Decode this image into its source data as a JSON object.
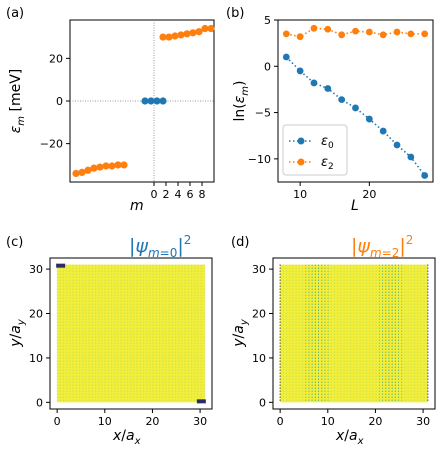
{
  "colors": {
    "blue": "#1f77b4",
    "orange": "#ff7f0e",
    "yellow": "#f2ee3a",
    "lightgreen": "#9fd36a",
    "teal": "#2ca58d",
    "dark": "#2b2b66"
  },
  "chart_data": [
    {
      "type": "scatter",
      "panel_label": "(a)",
      "xlabel": "m",
      "ylabel": "ε_m [meV]",
      "xticks": [
        "0",
        "2",
        "4",
        "6",
        "8"
      ],
      "yticks": [
        "−20",
        "0",
        "20"
      ],
      "xlim": [
        -14,
        10
      ],
      "ylim": [
        -38,
        38
      ],
      "reference_lines": {
        "x": 0,
        "y": 0
      },
      "series": [
        {
          "color": "orange",
          "x": [
            -13,
            -12,
            -11,
            -10,
            -9,
            -8,
            -7,
            -6,
            -5
          ],
          "y": [
            -34,
            -33.5,
            -32.5,
            -31.5,
            -31,
            -30.5,
            -30.5,
            -30,
            -30
          ]
        },
        {
          "color": "blue",
          "x": [
            -1.5,
            -0.5,
            0.5,
            1.5
          ],
          "y": [
            0,
            0,
            0,
            0
          ]
        },
        {
          "color": "orange",
          "x": [
            1.5,
            2.5,
            3.5,
            4.5,
            5.5,
            6.5,
            7.5,
            8.5,
            9.5
          ],
          "y": [
            30,
            30,
            30.5,
            31,
            31.5,
            32,
            32.5,
            34,
            34
          ]
        }
      ]
    },
    {
      "type": "line",
      "panel_label": "(b)",
      "xlabel": "L",
      "ylabel": "ln(ε_m)",
      "xticks": [
        "10",
        "20"
      ],
      "yticks": [
        "−10",
        "−5",
        "0",
        "5"
      ],
      "xlim": [
        6.8,
        29.2
      ],
      "ylim": [
        -12.5,
        5
      ],
      "legend": {
        "position": "lower-left",
        "entries": [
          "ε_0",
          "ε_2"
        ]
      },
      "series": [
        {
          "name": "ε_0",
          "color": "blue",
          "x": [
            8,
            10,
            12,
            14,
            16,
            18,
            20,
            22,
            24,
            26,
            28
          ],
          "y": [
            1,
            -0.5,
            -1.8,
            -2.4,
            -3.6,
            -4.5,
            -5.7,
            -7.0,
            -8.5,
            -9.8,
            -11.8
          ]
        },
        {
          "name": "ε_2",
          "color": "orange",
          "x": [
            8,
            10,
            12,
            14,
            16,
            18,
            20,
            22,
            24,
            26,
            28
          ],
          "y": [
            3.5,
            3.2,
            4.1,
            4.0,
            3.4,
            3.8,
            3.7,
            3.4,
            3.7,
            3.5,
            3.5
          ]
        }
      ]
    },
    {
      "type": "heatmap",
      "panel_label": "(c)",
      "title": "|ψ_{m=0}|²",
      "title_color": "blue",
      "xlabel": "x/a_x",
      "ylabel": "y/a_y",
      "xticks": [
        "0",
        "10",
        "20",
        "30"
      ],
      "yticks": [
        "0",
        "10",
        "20",
        "30"
      ],
      "xlim": [
        -1.5,
        32.5
      ],
      "ylim": [
        -1.5,
        32.5
      ],
      "pattern": "edge-localized"
    },
    {
      "type": "heatmap",
      "panel_label": "(d)",
      "title": "|ψ_{m=2}|²",
      "title_color": "orange",
      "xlabel": "x/a_x",
      "ylabel": "y/a_y",
      "xticks": [
        "0",
        "10",
        "20",
        "30"
      ],
      "yticks": [
        "0",
        "10",
        "20",
        "30"
      ],
      "xlim": [
        -1.5,
        32.5
      ],
      "ylim": [
        -1.5,
        32.5
      ],
      "pattern": "standing-wave"
    }
  ]
}
